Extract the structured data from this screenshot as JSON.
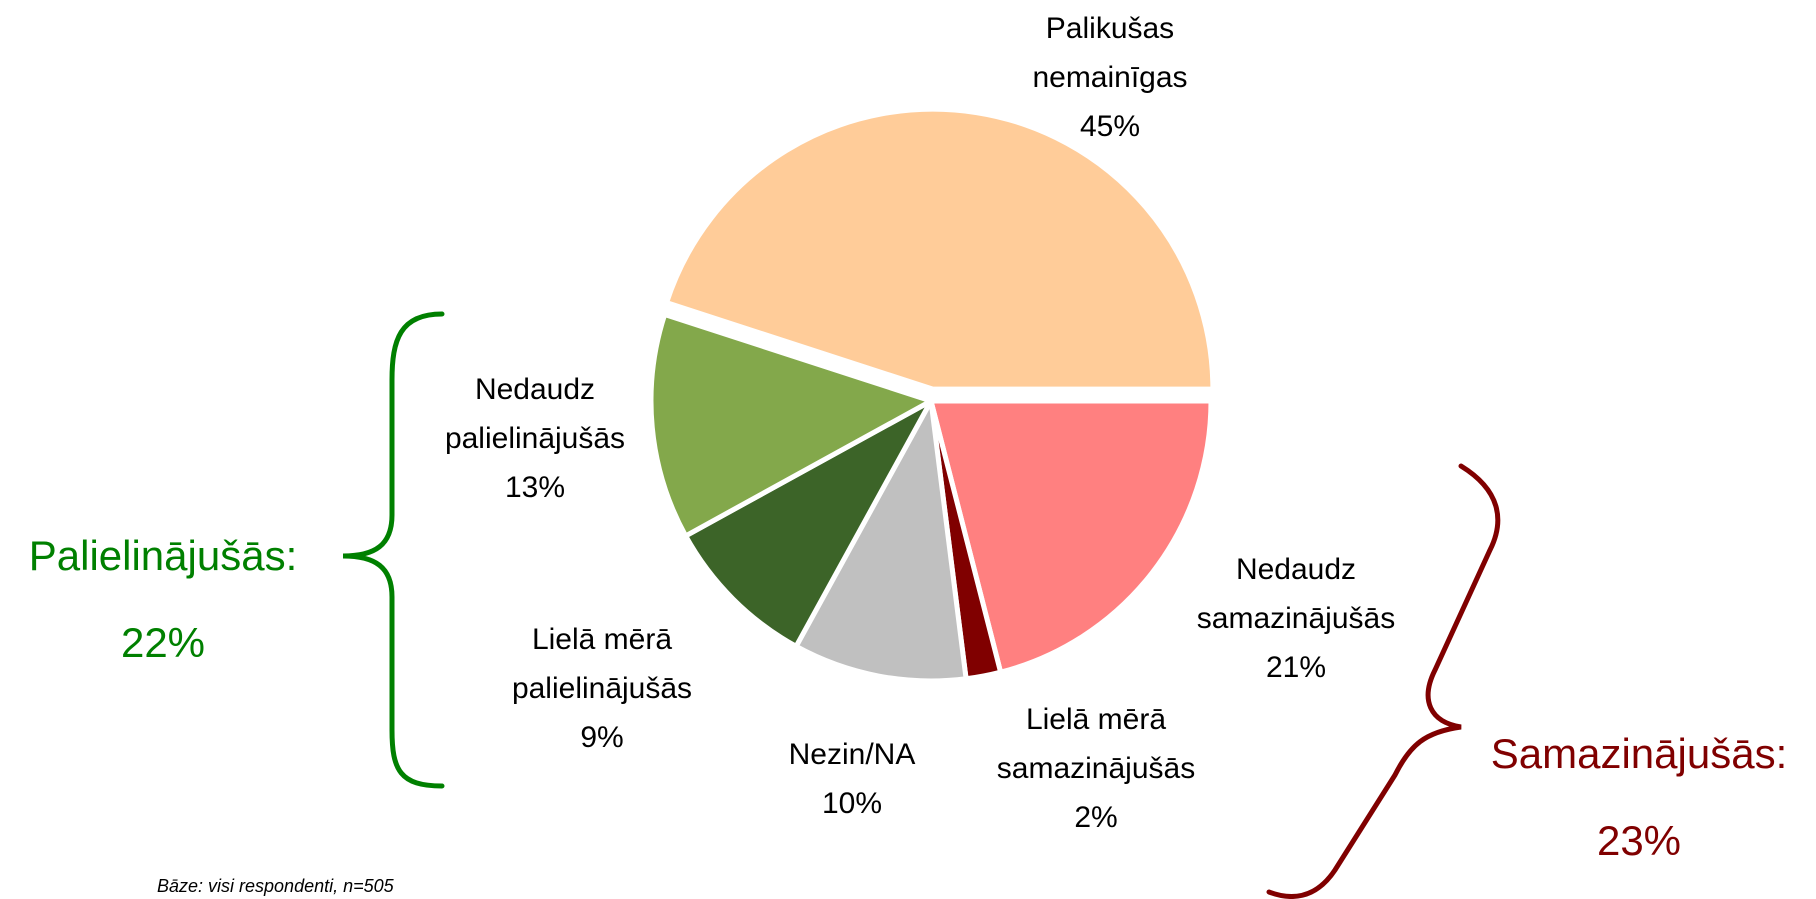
{
  "chart_data": {
    "type": "pie",
    "categories": [
      "Palikušas\nnemainīgas",
      "Nedaudz\nsamazinājušās",
      "Lielā mērā\nsamazinājušās",
      "Nezin/NA",
      "Lielā mērā\npalielinājušās",
      "Nedaudz\npalielinājušās"
    ],
    "values": [
      45,
      21,
      2,
      10,
      9,
      13
    ],
    "value_labels": [
      "45%",
      "21%",
      "2%",
      "10%",
      "9%",
      "13%"
    ],
    "colors": [
      "#FFCC99",
      "#FF8080",
      "#800000",
      "#C0C0C0",
      "#3C6428",
      "#83A84B"
    ],
    "groups": [
      {
        "label": "Palielinājušās:",
        "value": 22,
        "value_label": "22%",
        "color": "#008000"
      },
      {
        "label": "Samazinājušās:",
        "value": 23,
        "value_label": "23%",
        "color": "#800000"
      }
    ],
    "note": "Bāze: visi respondenti, n=505"
  }
}
